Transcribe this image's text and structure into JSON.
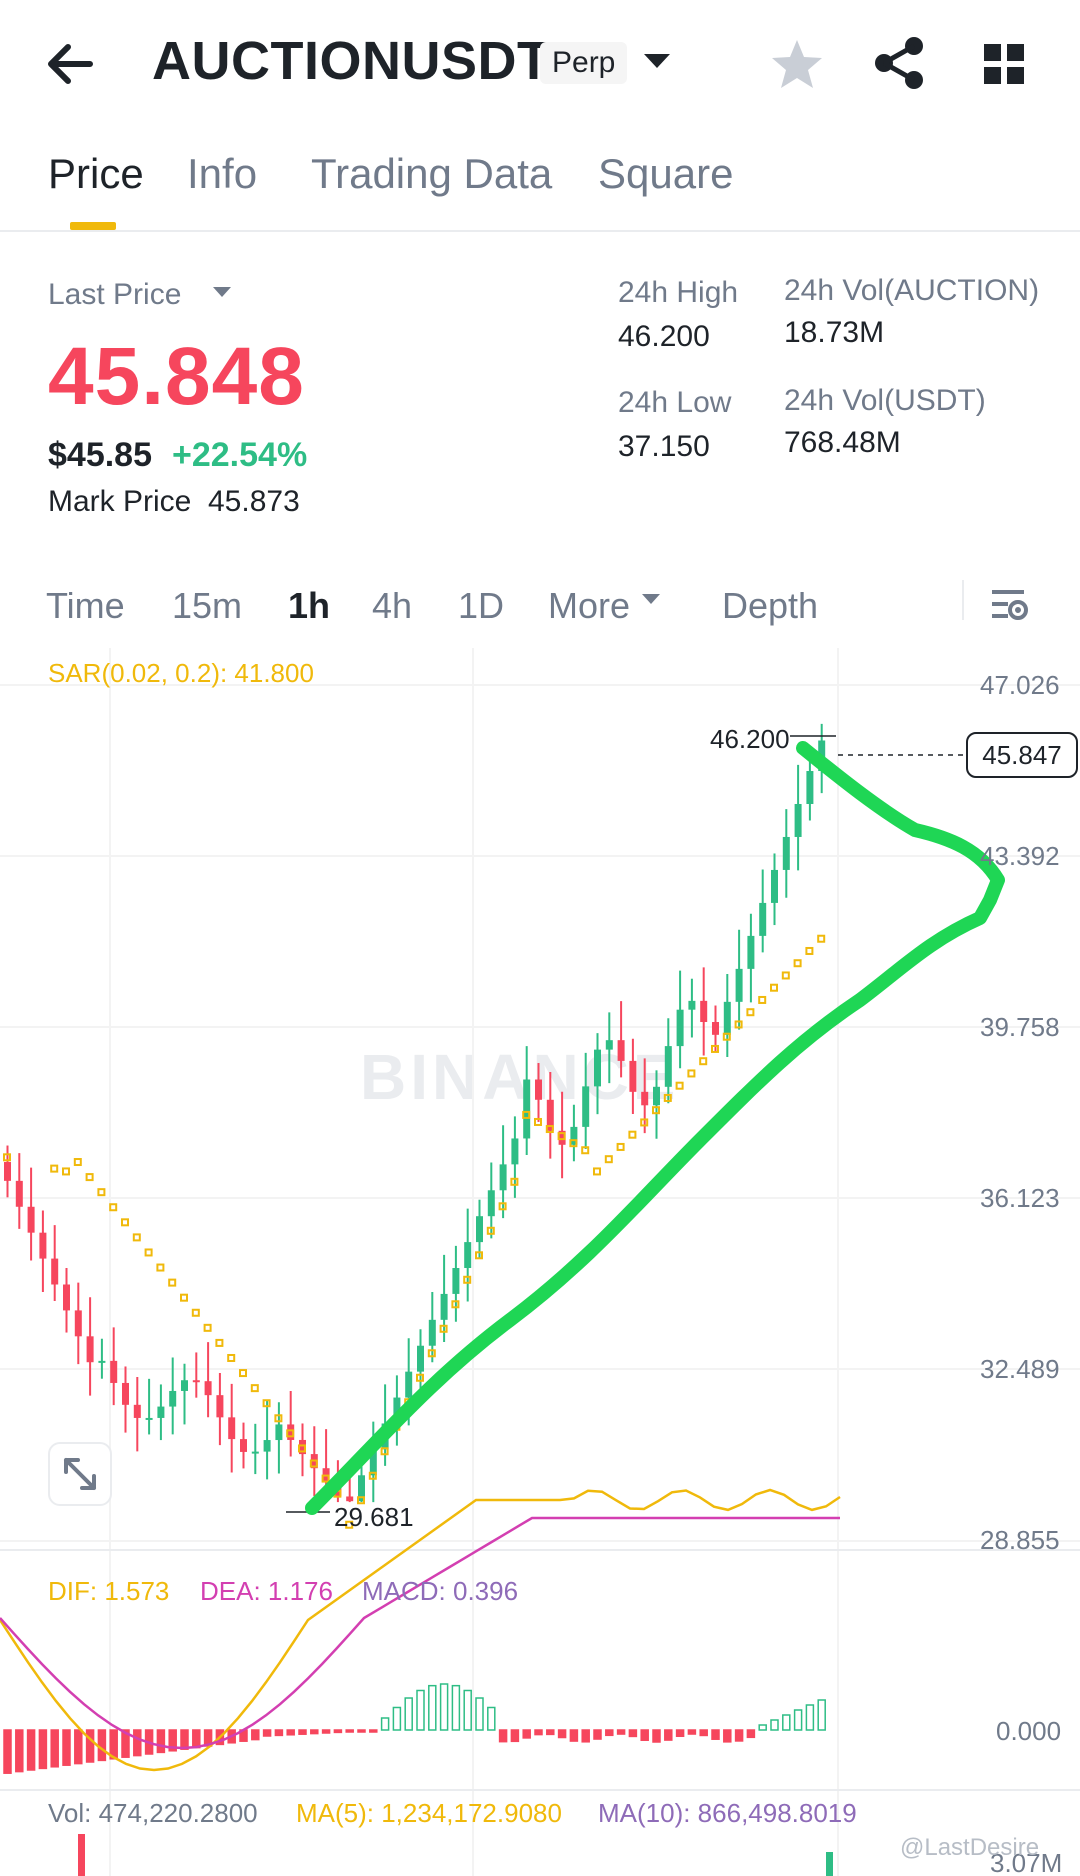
{
  "header": {
    "symbol": "AUCTIONUSDT",
    "badge": "Perp",
    "icons": [
      "back-arrow-icon",
      "chevron-down-icon",
      "star-icon",
      "share-icon",
      "grid-icon"
    ]
  },
  "tabs": [
    {
      "label": "Price",
      "active": true
    },
    {
      "label": "Info",
      "active": false
    },
    {
      "label": "Trading Data",
      "active": false
    },
    {
      "label": "Square",
      "active": false
    }
  ],
  "price": {
    "last_price_label": "Last Price",
    "last_price": "45.848",
    "usd_value": "$45.85",
    "change_pct": "+22.54%",
    "mark_price_label": "Mark Price",
    "mark_price": "45.873"
  },
  "stats": {
    "high_label": "24h High",
    "high": "46.200",
    "low_label": "24h Low",
    "low": "37.150",
    "vol_base_label": "24h Vol(AUCTION)",
    "vol_base": "18.73M",
    "vol_quote_label": "24h Vol(USDT)",
    "vol_quote": "768.48M"
  },
  "intervals": [
    {
      "label": "Time",
      "active": false
    },
    {
      "label": "15m",
      "active": false
    },
    {
      "label": "1h",
      "active": true
    },
    {
      "label": "4h",
      "active": false
    },
    {
      "label": "1D",
      "active": false
    },
    {
      "label": "More",
      "active": false
    },
    {
      "label": "Depth",
      "active": false
    }
  ],
  "chart": {
    "sar_label": "SAR(0.02, 0.2): 41.800",
    "y_ticks": [
      "47.026",
      "43.392",
      "39.758",
      "36.123",
      "32.489",
      "28.855"
    ],
    "current_price_tag": "45.847",
    "high_marker": "46.200",
    "low_marker": "29.681",
    "watermark": "BINANCE",
    "colors": {
      "up": "#2ebd85",
      "down": "#f6465d",
      "sar": "#f0b90b",
      "annotation": "#1fd655",
      "dif": "#f0b90b",
      "dea": "#d33fb1"
    }
  },
  "macd": {
    "dif_label": "DIF: 1.573",
    "dea_label": "DEA: 1.176",
    "macd_label": "MACD: 0.396",
    "zero_tick": "0.000"
  },
  "volume": {
    "vol_label": "Vol: 474,220.2800",
    "ma5_label": "MA(5): 1,234,172.9080",
    "ma10_label": "MA(10): 866,498.8019",
    "tick": "3.07M"
  },
  "footer": {
    "watermark": "@LastDesire"
  }
}
